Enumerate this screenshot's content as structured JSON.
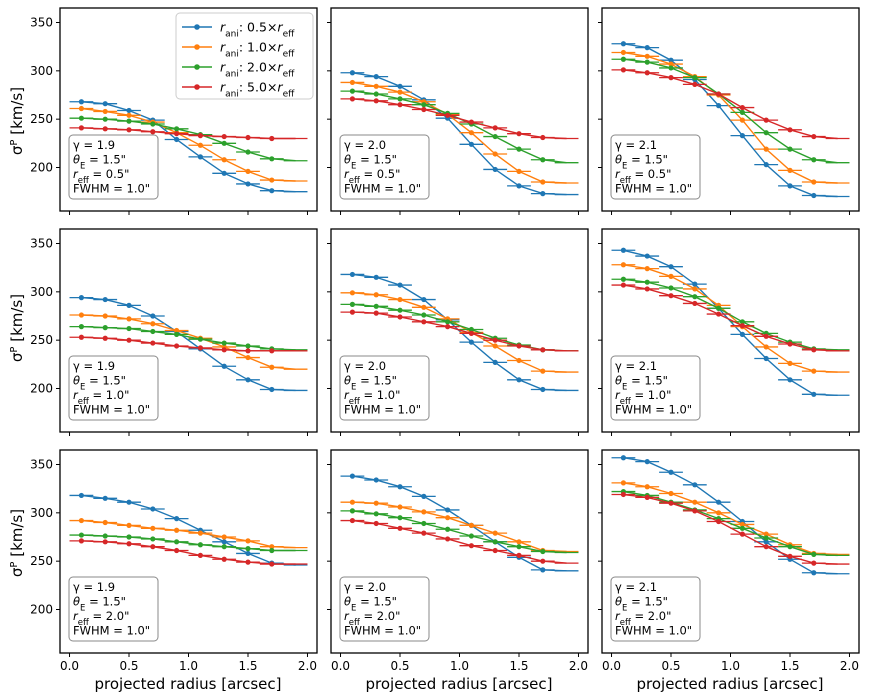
{
  "figure": {
    "ylabel": "σ",
    "ylabel_sup": "P",
    "ylabel_unit": " [km/s]",
    "xlabel": "projected radius [arcsec]"
  },
  "legend": {
    "position": "top-right of first panel",
    "entries": [
      {
        "r": "r",
        "sub": "ani",
        "mid": ": 0.5×",
        "r2": "r",
        "sub2": "eff",
        "color": "#1f77b4"
      },
      {
        "r": "r",
        "sub": "ani",
        "mid": ": 1.0×",
        "r2": "r",
        "sub2": "eff",
        "color": "#ff7f0e"
      },
      {
        "r": "r",
        "sub": "ani",
        "mid": ": 2.0×",
        "r2": "r",
        "sub2": "eff",
        "color": "#2ca02c"
      },
      {
        "r": "r",
        "sub": "ani",
        "mid": ": 5.0×",
        "r2": "r",
        "sub2": "eff",
        "color": "#d62728"
      }
    ]
  },
  "colors": {
    "blue": "#1f77b4",
    "orange": "#ff7f0e",
    "green": "#2ca02c",
    "red": "#d62728"
  },
  "chart_data": {
    "type": "line",
    "layout": "3x3 grid, shared x and y axes",
    "xlim": [
      -0.08,
      2.08
    ],
    "ylim": [
      155,
      365
    ],
    "xticks": [
      0.0,
      0.5,
      1.0,
      1.5,
      2.0
    ],
    "xtick_labels": [
      "0.0",
      "0.5",
      "1.0",
      "1.5",
      "2.0"
    ],
    "yticks": [
      200,
      250,
      300,
      350
    ],
    "ytick_labels": [
      "200",
      "250",
      "300",
      "350"
    ],
    "x": [
      0.1,
      0.3,
      0.5,
      0.7,
      0.9,
      1.1,
      1.3,
      1.5,
      1.7,
      1.9
    ],
    "bin_halfwidth": 0.1,
    "series_names": [
      "r_ani: 0.5×r_eff",
      "r_ani: 1.0×r_eff",
      "r_ani: 2.0×r_eff",
      "r_ani: 5.0×r_eff"
    ],
    "panels": [
      {
        "annotation": [
          "γ = 1.9",
          "θ_E = 1.5\"",
          "r_eff = 0.5\"",
          "FWHM = 1.0\""
        ],
        "series": [
          [
            268,
            266,
            259,
            249,
            229,
            211,
            194,
            183,
            176,
            175
          ],
          [
            261,
            258,
            254,
            247,
            236,
            223,
            208,
            196,
            187,
            186
          ],
          [
            251,
            250,
            248,
            245,
            240,
            234,
            225,
            216,
            209,
            207
          ],
          [
            241,
            240,
            239,
            237,
            235,
            233,
            232,
            231,
            230,
            230
          ]
        ]
      },
      {
        "annotation": [
          "γ = 2.0",
          "θ_E = 1.5\"",
          "r_eff = 0.5\"",
          "FWHM = 1.0\""
        ],
        "series": [
          [
            298,
            294,
            284,
            270,
            251,
            224,
            198,
            181,
            173,
            172
          ],
          [
            288,
            284,
            278,
            268,
            255,
            236,
            214,
            196,
            185,
            184
          ],
          [
            279,
            276,
            271,
            265,
            256,
            245,
            232,
            219,
            208,
            205
          ],
          [
            271,
            269,
            265,
            260,
            254,
            247,
            241,
            235,
            231,
            230
          ]
        ]
      },
      {
        "annotation": [
          "γ = 2.1",
          "θ_E = 1.5\"",
          "r_eff = 0.5\"",
          "FWHM = 1.0\""
        ],
        "series": [
          [
            328,
            324,
            311,
            291,
            264,
            233,
            203,
            181,
            171,
            170
          ],
          [
            319,
            315,
            307,
            294,
            275,
            249,
            219,
            197,
            185,
            184
          ],
          [
            312,
            309,
            303,
            293,
            276,
            257,
            236,
            219,
            208,
            205
          ],
          [
            301,
            298,
            293,
            286,
            276,
            262,
            249,
            239,
            232,
            230
          ]
        ]
      },
      {
        "annotation": [
          "γ = 1.9",
          "θ_E = 1.5\"",
          "r_eff = 1.0\"",
          "FWHM = 1.0\""
        ],
        "series": [
          [
            294,
            292,
            286,
            275,
            259,
            241,
            223,
            209,
            199,
            198
          ],
          [
            276,
            275,
            272,
            267,
            260,
            252,
            243,
            232,
            222,
            220
          ],
          [
            264,
            263,
            262,
            259,
            256,
            251,
            247,
            244,
            241,
            240
          ],
          [
            253,
            252,
            250,
            247,
            244,
            242,
            240,
            239,
            239,
            239
          ]
        ]
      },
      {
        "annotation": [
          "γ = 2.0",
          "θ_E = 1.5\"",
          "r_eff = 1.0\"",
          "FWHM = 1.0\""
        ],
        "series": [
          [
            318,
            315,
            307,
            292,
            271,
            248,
            227,
            209,
            199,
            198
          ],
          [
            299,
            297,
            292,
            284,
            272,
            258,
            244,
            229,
            218,
            217
          ],
          [
            287,
            285,
            281,
            276,
            269,
            261,
            252,
            245,
            240,
            239
          ],
          [
            279,
            278,
            274,
            269,
            264,
            257,
            250,
            244,
            240,
            239
          ]
        ]
      },
      {
        "annotation": [
          "γ = 2.1",
          "θ_E = 1.5\"",
          "r_eff = 1.0\"",
          "FWHM = 1.0\""
        ],
        "series": [
          [
            343,
            337,
            326,
            308,
            283,
            256,
            231,
            209,
            194,
            193
          ],
          [
            328,
            324,
            316,
            303,
            286,
            264,
            243,
            226,
            218,
            217
          ],
          [
            313,
            310,
            304,
            295,
            283,
            269,
            257,
            248,
            241,
            240
          ],
          [
            307,
            303,
            296,
            288,
            277,
            265,
            254,
            246,
            240,
            239
          ]
        ]
      },
      {
        "annotation": [
          "γ = 1.9",
          "θ_E = 1.5\"",
          "r_eff = 2.0\"",
          "FWHM = 1.0\""
        ],
        "series": [
          [
            318,
            315,
            311,
            304,
            294,
            282,
            270,
            258,
            248,
            246
          ],
          [
            292,
            290,
            287,
            284,
            282,
            279,
            275,
            271,
            265,
            264
          ],
          [
            277,
            276,
            275,
            273,
            270,
            267,
            265,
            263,
            261,
            261
          ],
          [
            271,
            270,
            268,
            265,
            261,
            256,
            252,
            249,
            247,
            247
          ]
        ]
      },
      {
        "annotation": [
          "γ = 2.0",
          "θ_E = 1.5\"",
          "r_eff = 2.0\"",
          "FWHM = 1.0\""
        ],
        "series": [
          [
            338,
            334,
            327,
            317,
            303,
            287,
            270,
            254,
            241,
            240
          ],
          [
            311,
            310,
            306,
            301,
            295,
            287,
            279,
            270,
            261,
            260
          ],
          [
            302,
            299,
            295,
            289,
            283,
            276,
            270,
            265,
            260,
            259
          ],
          [
            292,
            289,
            284,
            279,
            273,
            266,
            261,
            256,
            250,
            248
          ]
        ]
      },
      {
        "annotation": [
          "γ = 2.1",
          "θ_E = 1.5\"",
          "r_eff = 2.0\"",
          "FWHM = 1.0\""
        ],
        "series": [
          [
            357,
            353,
            342,
            329,
            311,
            291,
            270,
            252,
            238,
            237
          ],
          [
            331,
            327,
            320,
            311,
            300,
            288,
            278,
            267,
            258,
            257
          ],
          [
            322,
            318,
            311,
            303,
            294,
            284,
            274,
            265,
            257,
            256
          ],
          [
            319,
            316,
            310,
            302,
            291,
            278,
            265,
            255,
            248,
            247
          ]
        ]
      }
    ]
  }
}
